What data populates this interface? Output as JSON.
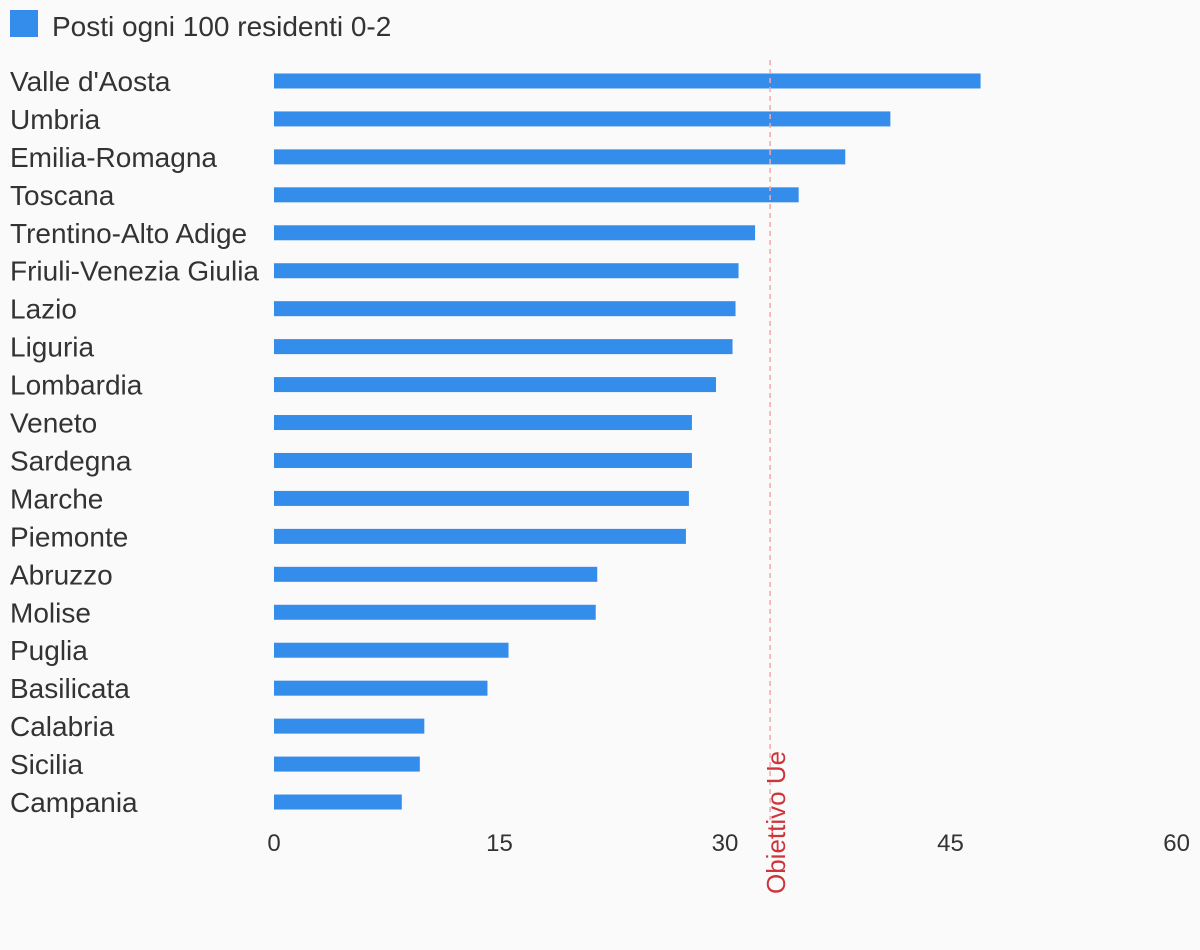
{
  "chart_data": {
    "type": "bar",
    "orientation": "horizontal",
    "legend_position": "top-left",
    "grid": false,
    "series": [
      {
        "name": "Posti ogni 100 residenti 0-2",
        "color": "#348ceb",
        "values": [
          47.0,
          41.0,
          38.0,
          34.9,
          32.0,
          30.9,
          30.7,
          30.5,
          29.4,
          27.8,
          27.8,
          27.6,
          27.4,
          21.5,
          21.4,
          15.6,
          14.2,
          10.0,
          9.7,
          8.5
        ]
      }
    ],
    "categories": [
      "Valle d'Aosta",
      "Umbria",
      "Emilia-Romagna",
      "Toscana",
      "Trentino-Alto Adige",
      "Friuli-Venezia Giulia",
      "Lazio",
      "Liguria",
      "Lombardia",
      "Veneto",
      "Sardegna",
      "Marche",
      "Piemonte",
      "Abruzzo",
      "Molise",
      "Puglia",
      "Basilicata",
      "Calabria",
      "Sicilia",
      "Campania"
    ],
    "xlim": [
      0,
      60
    ],
    "xticks": [
      0,
      15,
      30,
      45,
      60
    ],
    "reference_line": {
      "value": 33,
      "label": "Obiettivo Ue",
      "color": "#d0333a"
    }
  }
}
